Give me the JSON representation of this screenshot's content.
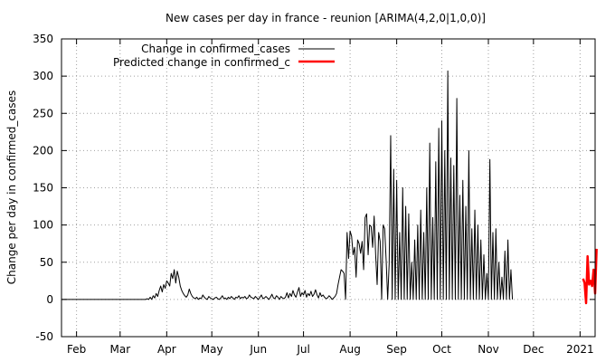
{
  "chart_data": {
    "type": "line",
    "title": "New cases per day in france - reunion [ARIMA(4,2,0|1,0,0)]",
    "xlabel": "",
    "ylabel": "Change per day in confirmed_cases",
    "x_start": "2020-01-22",
    "xlim": [
      "2020-01-22",
      "2021-01-11"
    ],
    "ylim": [
      -50,
      350
    ],
    "y_ticks": [
      -50,
      0,
      50,
      100,
      150,
      200,
      250,
      300,
      350
    ],
    "x_ticks": [
      {
        "date": "2020-02-01",
        "label": "Feb"
      },
      {
        "date": "2020-03-01",
        "label": "Mar"
      },
      {
        "date": "2020-04-01",
        "label": "Apr"
      },
      {
        "date": "2020-05-01",
        "label": "May"
      },
      {
        "date": "2020-06-01",
        "label": "Jun"
      },
      {
        "date": "2020-07-01",
        "label": "Jul"
      },
      {
        "date": "2020-08-01",
        "label": "Aug"
      },
      {
        "date": "2020-09-01",
        "label": "Sep"
      },
      {
        "date": "2020-10-01",
        "label": "Oct"
      },
      {
        "date": "2020-11-01",
        "label": "Nov"
      },
      {
        "date": "2020-12-01",
        "label": "Dec"
      },
      {
        "date": "2021-01-01",
        "label": "2021"
      }
    ],
    "grid": true,
    "legend_position": "top-left",
    "series": [
      {
        "name": "Change in confirmed_cases",
        "color": "#000000",
        "start_date": "2020-01-22",
        "values": [
          0,
          0,
          0,
          0,
          0,
          0,
          0,
          0,
          0,
          0,
          0,
          0,
          0,
          0,
          0,
          0,
          0,
          0,
          0,
          0,
          0,
          0,
          0,
          0,
          0,
          0,
          0,
          0,
          0,
          0,
          0,
          0,
          0,
          0,
          0,
          0,
          0,
          0,
          0,
          0,
          0,
          0,
          0,
          0,
          0,
          0,
          0,
          0,
          0,
          0,
          0,
          0,
          0,
          0,
          0,
          0,
          0,
          1,
          0,
          3,
          0,
          5,
          2,
          8,
          4,
          12,
          18,
          10,
          20,
          15,
          25,
          22,
          18,
          35,
          28,
          40,
          22,
          38,
          30,
          18,
          12,
          8,
          5,
          3,
          6,
          14,
          8,
          4,
          2,
          1,
          3,
          0,
          2,
          1,
          6,
          3,
          1,
          0,
          4,
          2,
          1,
          0,
          2,
          3,
          1,
          0,
          2,
          5,
          1,
          2,
          0,
          3,
          1,
          4,
          2,
          0,
          3,
          2,
          5,
          1,
          3,
          2,
          4,
          1,
          2,
          6,
          3,
          2,
          1,
          4,
          2,
          0,
          3,
          6,
          1,
          2,
          4,
          2,
          0,
          3,
          7,
          2,
          1,
          5,
          3,
          0,
          4,
          2,
          1,
          3,
          9,
          2,
          8,
          4,
          12,
          6,
          3,
          10,
          16,
          4,
          9,
          6,
          12,
          3,
          8,
          5,
          11,
          4,
          7,
          13,
          6,
          2,
          9,
          4,
          6,
          3,
          1,
          2,
          5,
          3,
          0,
          2,
          4,
          8,
          20,
          30,
          40,
          38,
          35,
          0,
          90,
          55,
          92,
          85,
          60,
          70,
          30,
          80,
          75,
          62,
          78,
          40,
          110,
          115,
          60,
          100,
          98,
          70,
          112,
          60,
          20,
          90,
          78,
          0,
          100,
          95,
          52,
          0,
          48,
          220,
          0,
          175,
          0,
          160,
          0,
          90,
          0,
          150,
          0,
          125,
          0,
          115,
          0,
          50,
          0,
          80,
          0,
          100,
          0,
          120,
          0,
          90,
          0,
          150,
          0,
          210,
          0,
          110,
          0,
          185,
          0,
          230,
          0,
          240,
          0,
          200,
          0,
          307,
          0,
          190,
          0,
          180,
          0,
          270,
          0,
          140,
          0,
          160,
          0,
          125,
          0,
          200,
          0,
          95,
          0,
          120,
          0,
          100,
          0,
          80,
          0,
          60,
          0,
          35,
          0,
          188,
          0,
          90,
          0,
          95,
          0,
          50,
          0,
          30,
          0,
          65,
          0,
          80,
          0,
          40,
          0
        ]
      },
      {
        "name": "Predicted change in confirmed_c",
        "color": "#ff0000",
        "start_date": "2021-01-03",
        "values": [
          28,
          22,
          -5,
          58,
          20,
          25,
          18,
          40,
          8,
          68
        ]
      }
    ]
  }
}
